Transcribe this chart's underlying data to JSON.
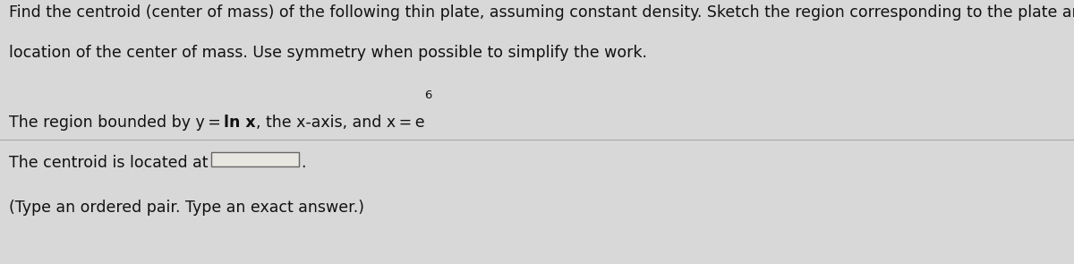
{
  "background_color": "#d8d8d8",
  "top_section_bg": "#d8d8d8",
  "bottom_section_bg": "#e8e6e0",
  "text_color": "#1a1a2e",
  "text_color_dark": "#111111",
  "line1": "Find the centroid (center of mass) of the following thin plate, assuming constant density. Sketch the region corresponding to the plate and indicate the",
  "line2": "location of the center of mass. Use symmetry when possible to simplify the work.",
  "line3_pre": "The region bounded by y = ",
  "line3_bold": "ln x",
  "line3_post": ", the x-axis, and x = e",
  "superscript": "6",
  "line4": "The centroid is located at",
  "line5": "(Type an ordered pair. Type an exact answer.)",
  "fontsize_main": 12.5,
  "fontsize_small": 10.5,
  "divider_color": "#aaaaaa",
  "box_edgecolor": "#666666"
}
